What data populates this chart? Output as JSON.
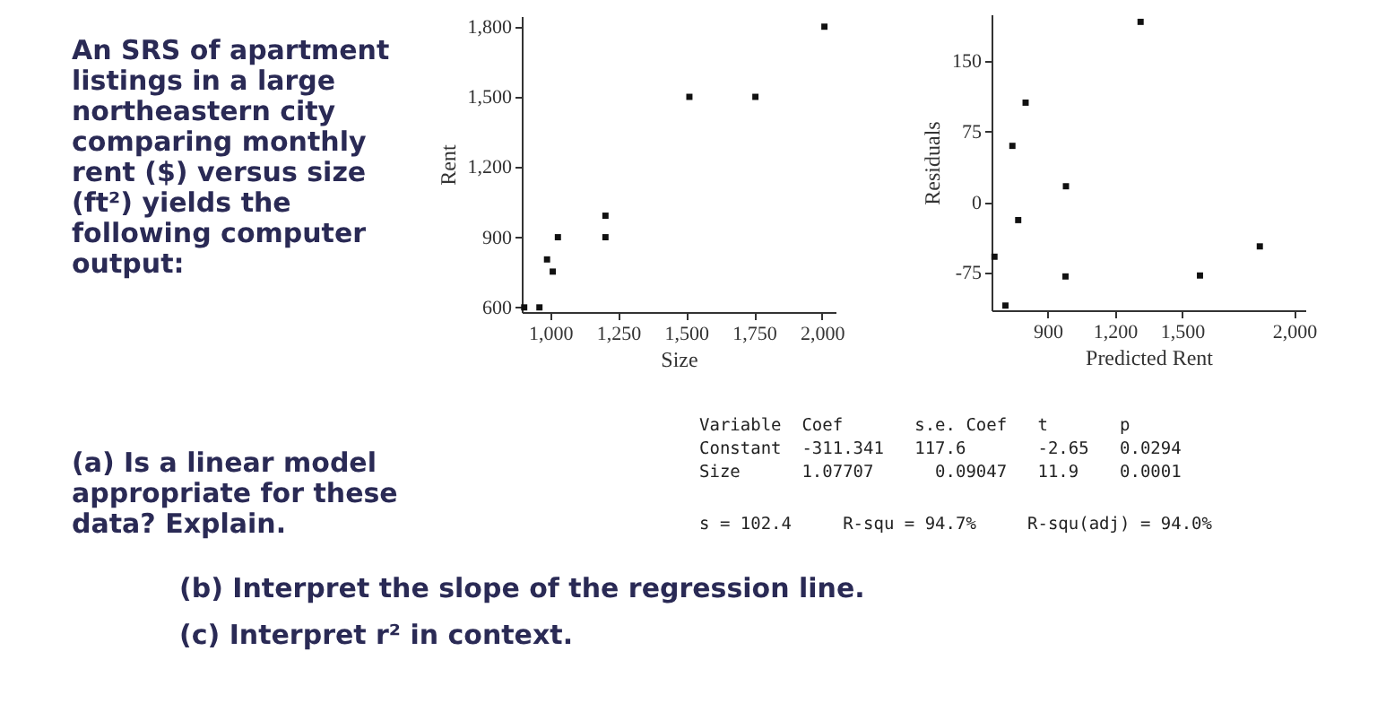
{
  "chart_data": [
    {
      "type": "other",
      "annotations": [
        "An SRS of apartment listings in a large northeastern city comparing monthly rent ($) versus size (ft²) yields the following computer output:",
        "(a) Is a linear model appropriate for these data? Explain.",
        "Variable  Coef       s.e. Coef   t       p",
        "Constant  -311.341   117.6       -2.65   0.0294",
        "Size      1.07707      0.09047   11.9    0.0001",
        "s = 102.4     R-squ = 94.7%     R-squ(adj) = 94.0%",
        "(b) Interpret the slope of the regression line.",
        "(c) Interpret r² in context."
      ]
    },
    {
      "type": "scatter",
      "xlabel": "Size",
      "ylabel": "Rent",
      "marker": "square",
      "grid": false,
      "x": [
        904,
        960,
        988,
        1009,
        1028,
        1203,
        1203,
        1512,
        1755,
        2009
      ],
      "series": [
        {
          "color": "#111111",
          "values": [
            600,
            600,
            805,
            753,
            900,
            992,
            900,
            1500,
            1500,
            1800
          ]
        }
      ],
      "xlim": [
        895,
        2050
      ],
      "xticks": [
        {
          "value": 1000,
          "label": "1,000"
        },
        {
          "value": 1250,
          "label": "1,250"
        },
        {
          "value": 1500,
          "label": "1,500"
        },
        {
          "value": 1750,
          "label": "1,750"
        },
        {
          "value": 2000,
          "label": "2,000"
        }
      ],
      "ylim": [
        580,
        1845
      ],
      "yticks": [
        600,
        900,
        {
          "value": 1200,
          "label": "1,200"
        },
        {
          "value": 1500,
          "label": "1,500"
        },
        {
          "value": 1800,
          "label": "1,800"
        }
      ]
    },
    {
      "type": "scatter",
      "xlabel": "Predicted Rent",
      "ylabel": "Residuals",
      "marker": "square",
      "grid": false,
      "x": [
        663,
        712,
        743,
        769,
        802,
        982,
        980,
        1315,
        1580,
        1847
      ],
      "series": [
        {
          "color": "#111111",
          "values": [
            -58,
            -110,
            60,
            -19,
            106,
            17,
            -79,
            192,
            -78,
            -47
          ]
        }
      ],
      "xlim": [
        650,
        2050
      ],
      "xticks": [
        900,
        {
          "value": 1200,
          "label": "1,200"
        },
        {
          "value": 1500,
          "label": "1,500"
        },
        {
          "value": 2000,
          "label": "2,000"
        }
      ],
      "ylim": [
        -115,
        200
      ],
      "yticks": [
        -75,
        0,
        75,
        150
      ]
    }
  ]
}
